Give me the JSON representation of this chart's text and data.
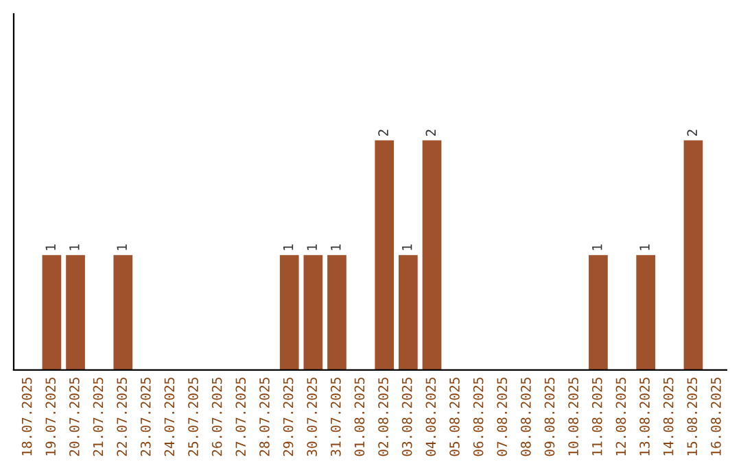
{
  "chart_data": {
    "type": "bar",
    "categories": [
      "18.07.2025",
      "19.07.2025",
      "20.07.2025",
      "21.07.2025",
      "22.07.2025",
      "23.07.2025",
      "24.07.2025",
      "25.07.2025",
      "26.07.2025",
      "27.07.2025",
      "28.07.2025",
      "29.07.2025",
      "30.07.2025",
      "31.07.2025",
      "01.08.2025",
      "02.08.2025",
      "03.08.2025",
      "04.08.2025",
      "05.08.2025",
      "06.08.2025",
      "07.08.2025",
      "08.08.2025",
      "09.08.2025",
      "10.08.2025",
      "11.08.2025",
      "12.08.2025",
      "13.08.2025",
      "14.08.2025",
      "15.08.2025",
      "16.08.2025"
    ],
    "values": [
      0,
      1,
      1,
      0,
      1,
      0,
      0,
      0,
      0,
      0,
      0,
      1,
      1,
      1,
      0,
      2,
      1,
      2,
      0,
      0,
      0,
      0,
      0,
      0,
      1,
      0,
      1,
      0,
      2,
      0
    ],
    "value_labels": [
      null,
      "1",
      "1",
      null,
      "1",
      null,
      null,
      null,
      null,
      null,
      null,
      "1",
      "1",
      "1",
      null,
      "2",
      "1",
      "2",
      null,
      null,
      null,
      null,
      null,
      null,
      "1",
      null,
      "1",
      null,
      "2",
      null
    ],
    "color": "#a0522d",
    "ylim": [
      0,
      3.1
    ],
    "tick_labels": "x",
    "grid": false,
    "legend": false
  }
}
